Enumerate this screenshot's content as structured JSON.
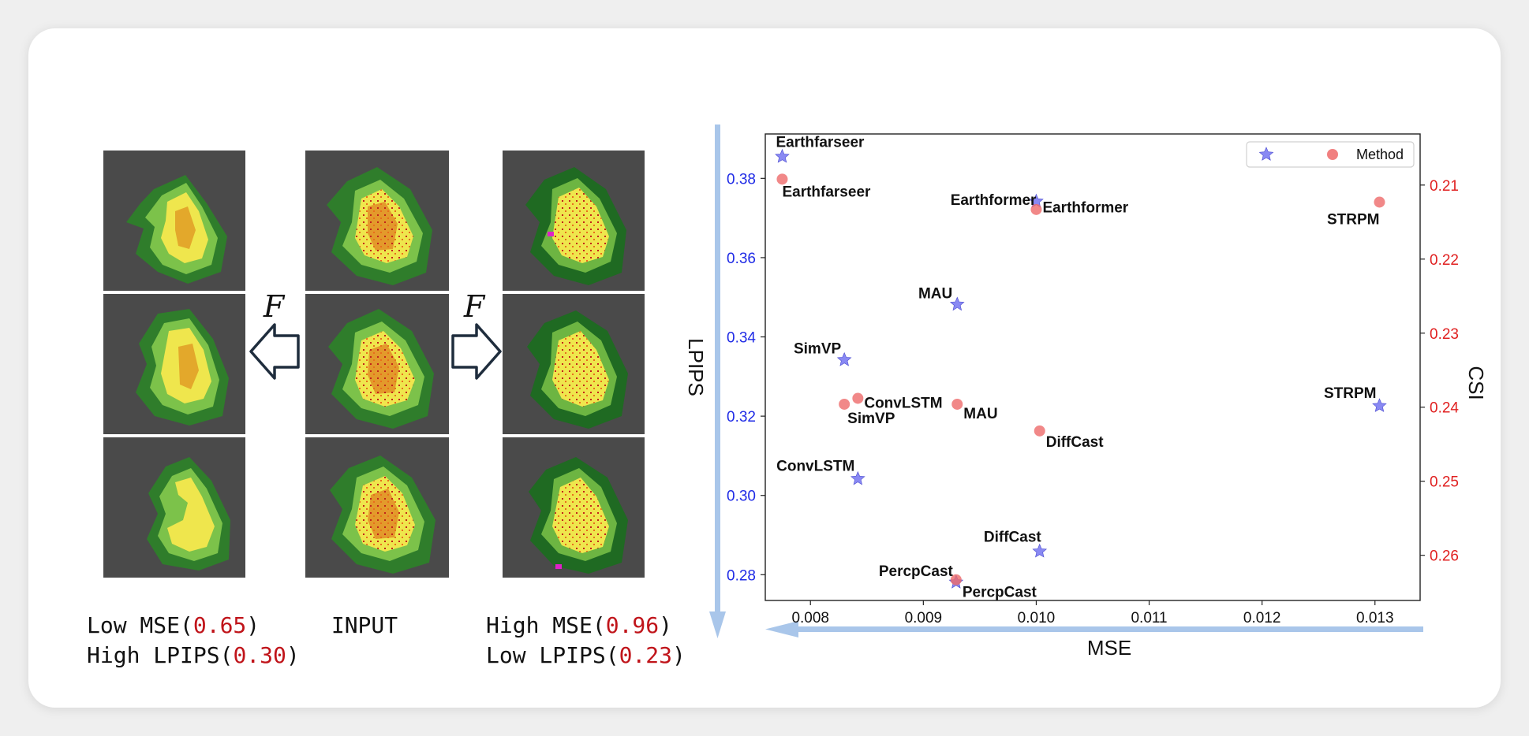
{
  "captions": {
    "left": {
      "line1_prefix": "Low  MSE(",
      "line1_value": "0.65",
      "line1_suffix": ")",
      "line2_prefix": "High LPIPS(",
      "line2_value": "0.30",
      "line2_suffix": ")"
    },
    "center": "INPUT",
    "right": {
      "line1_prefix": "High MSE(",
      "line1_value": "0.96",
      "line1_suffix": ")",
      "line2_prefix": "Low  LPIPS(",
      "line2_value": "0.23",
      "line2_suffix": ")"
    }
  },
  "arrows": {
    "left_label": "F",
    "right_label": "F"
  },
  "chart_data": {
    "type": "scatter",
    "xlabel": "MSE",
    "ylabel_left": "LPIPS",
    "ylabel_right": "CSI",
    "xlim": [
      0.0076,
      0.0134
    ],
    "ylim_left": [
      0.2735,
      0.3912
    ],
    "ylim_right_inverted": [
      0.2031,
      0.2661
    ],
    "x_ticks": [
      "0.008",
      "0.009",
      "0.010",
      "0.011",
      "0.012",
      "0.013"
    ],
    "y_left_ticks": [
      "0.28",
      "0.30",
      "0.32",
      "0.34",
      "0.36",
      "0.38"
    ],
    "y_right_ticks": [
      "0.21",
      "0.22",
      "0.23",
      "0.24",
      "0.25",
      "0.26"
    ],
    "legend": {
      "label": "Method",
      "position": "top-right"
    },
    "colors": {
      "lpips_marker": "#6b6bf0",
      "csi_marker": "#ee6a6a",
      "left_axis": "#1f2be6",
      "right_axis": "#e02020",
      "arrow": "#a9c6ea"
    },
    "series": [
      {
        "marker": "star",
        "axis": "left",
        "points": [
          {
            "label": "Earthfarseer",
            "x": 0.00775,
            "y": 0.3855
          },
          {
            "label": "Earthformer",
            "x": 0.01,
            "y": 0.3742
          },
          {
            "label": "MAU",
            "x": 0.0093,
            "y": 0.3482
          },
          {
            "label": "SimVP",
            "x": 0.0083,
            "y": 0.3342
          },
          {
            "label": "ConvLSTM",
            "x": 0.00842,
            "y": 0.3042
          },
          {
            "label": "DiffCast",
            "x": 0.01003,
            "y": 0.2859
          },
          {
            "label": "PercpCast",
            "x": 0.00929,
            "y": 0.2781
          },
          {
            "label": "STRPM",
            "x": 0.01304,
            "y": 0.3226
          }
        ]
      },
      {
        "marker": "circle",
        "axis": "right",
        "points": [
          {
            "label": "Earthfarseer",
            "x": 0.00775,
            "y": 0.2092
          },
          {
            "label": "Earthformer",
            "x": 0.01,
            "y": 0.2133
          },
          {
            "label": "MAU",
            "x": 0.0093,
            "y": 0.2396
          },
          {
            "label": "SimVP",
            "x": 0.0083,
            "y": 0.2396
          },
          {
            "label": "ConvLSTM",
            "x": 0.00842,
            "y": 0.2388
          },
          {
            "label": "DiffCast",
            "x": 0.01003,
            "y": 0.2432
          },
          {
            "label": "PercpCast",
            "x": 0.00929,
            "y": 0.2633
          },
          {
            "label": "STRPM",
            "x": 0.01304,
            "y": 0.2123
          }
        ]
      }
    ]
  }
}
